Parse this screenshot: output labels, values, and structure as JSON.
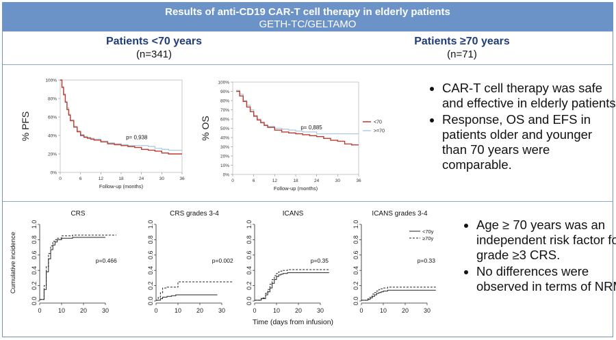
{
  "header": {
    "title": "Results of anti-CD19 CAR-T cell therapy in elderly patients",
    "subtitle": "GETH-TC/GELTAMO"
  },
  "groups": [
    {
      "label": "Patients <70 years",
      "n": "(n=341)"
    },
    {
      "label": "Patients ≥70 years",
      "n": "(n=71)"
    }
  ],
  "bullets_top": [
    "CAR-T cell therapy was safe and effective in elderly patients.",
    "Response, OS and EFS in patients older and younger than 70 years were comparable."
  ],
  "bullets_bottom": [
    "Age ≥ 70 years was an independent risk factor for grade ≥3 CRS.",
    "No differences were observed in terms of NRM."
  ],
  "colors": {
    "header_bg": "#6b93c8",
    "group_title": "#1f3c7a",
    "lt70": "#c0392b",
    "ge70": "#a9cde0",
    "border": "#8fa7cf"
  },
  "chart_data": [
    {
      "type": "line",
      "id": "pfs",
      "title": "",
      "ylabel": "% PFS",
      "xlabel": "Follow-up (months)",
      "xlim": [
        0,
        36
      ],
      "ylim": [
        0,
        100
      ],
      "xticks": [
        0,
        6,
        12,
        18,
        24,
        30,
        36
      ],
      "yticks": [
        0,
        20,
        40,
        60,
        80,
        100
      ],
      "ytick_suffix": "%",
      "annotation": "p=  0,938",
      "series": [
        {
          "name": "<70",
          "x": [
            0,
            0.5,
            1,
            1.5,
            2,
            2.5,
            3,
            4,
            5,
            6,
            7,
            8,
            9,
            10,
            12,
            14,
            16,
            18,
            20,
            22,
            24,
            26,
            28,
            30,
            32,
            34,
            36
          ],
          "y": [
            100,
            92,
            84,
            76,
            68,
            62,
            56,
            49,
            44,
            40,
            38,
            37,
            36,
            35,
            33,
            31,
            30,
            29,
            28,
            27,
            25,
            24,
            23,
            21,
            20,
            20,
            20
          ]
        },
        {
          "name": ">=70",
          "x": [
            0,
            0.5,
            1,
            1.5,
            2,
            2.5,
            3,
            4,
            5,
            6,
            7,
            8,
            9,
            10,
            12,
            14,
            16,
            18,
            20,
            22,
            24,
            26,
            28,
            30,
            32,
            34,
            36
          ],
          "y": [
            100,
            93,
            85,
            77,
            70,
            63,
            57,
            50,
            45,
            41,
            39,
            38,
            37,
            36,
            34,
            32,
            31,
            30,
            29,
            29,
            29,
            28,
            26,
            25,
            24,
            24,
            24
          ]
        }
      ]
    },
    {
      "type": "line",
      "id": "os",
      "title": "",
      "ylabel": "% OS",
      "xlabel": "Follow-up (months)",
      "xlim": [
        0,
        36
      ],
      "ylim": [
        0,
        100
      ],
      "xticks": [
        0,
        6,
        12,
        18,
        24,
        30,
        36
      ],
      "yticks": [
        0,
        10,
        20,
        30,
        40,
        50,
        60,
        70,
        80,
        90,
        100
      ],
      "ytick_suffix": "%",
      "annotation": "p=  0,885",
      "legend": [
        "<70",
        ">=70"
      ],
      "series": [
        {
          "name": "<70",
          "x": [
            1,
            2,
            3,
            4,
            5,
            6,
            7,
            8,
            9,
            10,
            12,
            14,
            16,
            18,
            20,
            22,
            24,
            26,
            28,
            30,
            32,
            34,
            36
          ],
          "y": [
            90,
            85,
            79,
            73,
            68,
            63,
            59,
            56,
            53,
            51,
            48,
            46,
            45,
            44,
            43,
            42,
            41,
            39,
            37,
            36,
            33,
            32,
            32
          ]
        },
        {
          "name": ">=70",
          "x": [
            1,
            2,
            3,
            4,
            5,
            6,
            7,
            8,
            9,
            10,
            12,
            14,
            16,
            18,
            20,
            22,
            24,
            26,
            28,
            30,
            32,
            34,
            36
          ],
          "y": [
            91,
            87,
            80,
            75,
            70,
            64,
            60,
            57,
            54,
            52,
            50,
            49,
            48,
            47,
            46,
            46,
            44,
            44,
            44,
            44,
            44,
            44,
            44
          ]
        }
      ]
    },
    {
      "type": "line",
      "id": "crs",
      "title": "CRS",
      "ylabel": "Cumulative incidence",
      "xlabel": "",
      "xlim": [
        0,
        35
      ],
      "ylim": [
        0,
        1
      ],
      "xticks": [
        0,
        10,
        20,
        30
      ],
      "yticks": [
        0,
        0.2,
        0.4,
        0.6,
        0.8,
        1.0
      ],
      "annotation": "p=0.466",
      "series": [
        {
          "name": "<70y",
          "x": [
            0,
            2,
            3,
            4,
            5,
            6,
            7,
            8,
            10,
            15,
            20,
            25,
            30
          ],
          "y": [
            0.02,
            0.15,
            0.38,
            0.55,
            0.67,
            0.73,
            0.77,
            0.8,
            0.82,
            0.83,
            0.83,
            0.83,
            0.83
          ]
        },
        {
          "name": "≥70y",
          "x": [
            0,
            2,
            3,
            4,
            5,
            6,
            7,
            8,
            10,
            15,
            20,
            25,
            30,
            35
          ],
          "y": [
            0.02,
            0.2,
            0.45,
            0.62,
            0.72,
            0.78,
            0.8,
            0.82,
            0.85,
            0.86,
            0.86,
            0.86,
            0.86,
            0.86
          ]
        }
      ]
    },
    {
      "type": "line",
      "id": "crs34",
      "title": "CRS grades 3-4",
      "ylabel": "",
      "xlabel": "",
      "xlim": [
        0,
        35
      ],
      "ylim": [
        0,
        1
      ],
      "xticks": [
        0,
        10,
        20,
        30
      ],
      "yticks": [
        0,
        0.2,
        0.4,
        0.6,
        0.8,
        1.0
      ],
      "annotation": "p=0.002",
      "series": [
        {
          "name": "<70y",
          "x": [
            0,
            2,
            3,
            5,
            7,
            9,
            12,
            20,
            28
          ],
          "y": [
            0.01,
            0.03,
            0.05,
            0.06,
            0.07,
            0.08,
            0.08,
            0.08,
            0.08
          ]
        },
        {
          "name": "≥70y",
          "x": [
            0,
            1,
            2,
            3,
            5,
            8,
            10,
            15,
            20,
            25,
            30,
            35
          ],
          "y": [
            0.01,
            0.05,
            0.11,
            0.17,
            0.18,
            0.18,
            0.25,
            0.25,
            0.25,
            0.25,
            0.25,
            0.25
          ]
        }
      ]
    },
    {
      "type": "line",
      "id": "icans",
      "title": "ICANS",
      "ylabel": "",
      "xlabel": "Time (days from infusion)",
      "xlim": [
        0,
        35
      ],
      "ylim": [
        0,
        1
      ],
      "xticks": [
        0,
        10,
        20,
        30
      ],
      "yticks": [
        0,
        0.2,
        0.4,
        0.6,
        0.8,
        1.0
      ],
      "annotation": "p=0.35",
      "series": [
        {
          "name": "<70y",
          "x": [
            0,
            3,
            5,
            6,
            7,
            8,
            9,
            10,
            11,
            12,
            13,
            15,
            18,
            20,
            25,
            30,
            34
          ],
          "y": [
            0.01,
            0.03,
            0.08,
            0.12,
            0.17,
            0.23,
            0.28,
            0.32,
            0.34,
            0.35,
            0.36,
            0.37,
            0.37,
            0.37,
            0.37,
            0.37,
            0.37
          ]
        },
        {
          "name": "≥70y",
          "x": [
            0,
            3,
            5,
            6,
            7,
            8,
            9,
            10,
            11,
            12,
            13,
            15,
            20,
            25,
            30,
            34
          ],
          "y": [
            0.01,
            0.04,
            0.1,
            0.15,
            0.22,
            0.28,
            0.33,
            0.36,
            0.38,
            0.39,
            0.4,
            0.41,
            0.41,
            0.41,
            0.41,
            0.41
          ]
        }
      ]
    },
    {
      "type": "line",
      "id": "icans34",
      "title": "ICANS grades 3-4",
      "ylabel": "",
      "xlabel": "",
      "xlim": [
        0,
        35
      ],
      "ylim": [
        0,
        1
      ],
      "xticks": [
        0,
        10,
        20,
        30
      ],
      "yticks": [
        0,
        0.2,
        0.4,
        0.6,
        0.8,
        1.0
      ],
      "annotation": "p=0.33",
      "legend": [
        "<70y",
        "≥70y"
      ],
      "series": [
        {
          "name": "<70y",
          "x": [
            0,
            3,
            4,
            5,
            6,
            7,
            8,
            9,
            10,
            12,
            15,
            20,
            25,
            30,
            34
          ],
          "y": [
            0.01,
            0.02,
            0.04,
            0.06,
            0.08,
            0.1,
            0.11,
            0.12,
            0.13,
            0.14,
            0.14,
            0.14,
            0.14,
            0.14,
            0.14
          ]
        },
        {
          "name": "≥70y",
          "x": [
            0,
            3,
            4,
            5,
            6,
            7,
            8,
            9,
            10,
            12,
            15,
            20,
            25,
            30,
            34
          ],
          "y": [
            0.01,
            0.03,
            0.06,
            0.09,
            0.11,
            0.13,
            0.15,
            0.16,
            0.17,
            0.18,
            0.18,
            0.18,
            0.18,
            0.18,
            0.18
          ]
        }
      ]
    }
  ]
}
